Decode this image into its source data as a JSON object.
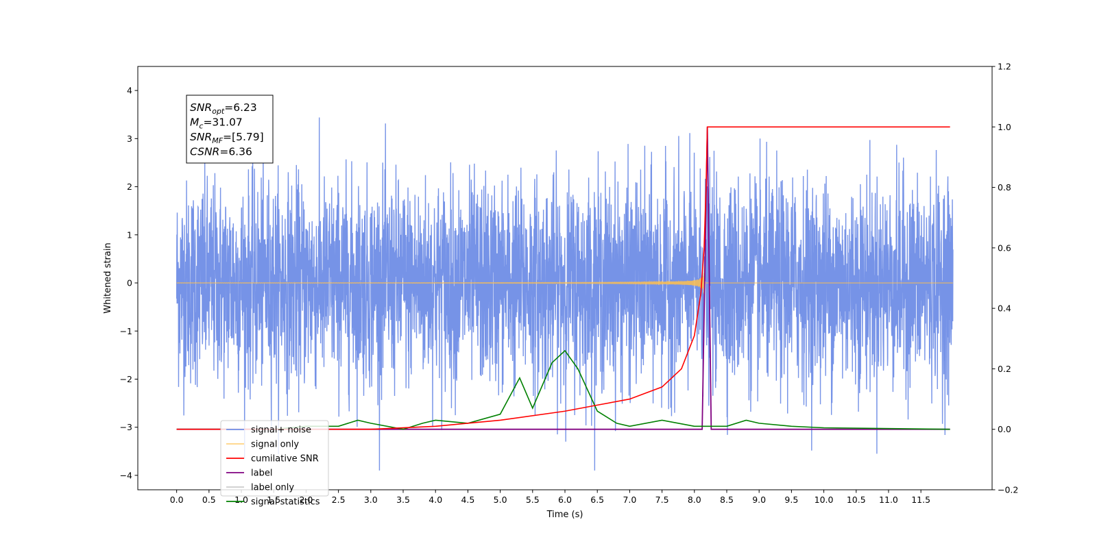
{
  "chart_data": {
    "type": "line",
    "xlabel": "Time (s)",
    "ylabel": "Whitened strain",
    "xlim": [
      -0.6,
      12.6
    ],
    "ylim": [
      -4.3,
      4.5
    ],
    "ylim_right": [
      -0.2,
      1.2
    ],
    "x_ticks": [
      "0.0",
      "0.5",
      "1.0",
      "1.5",
      "2.0",
      "2.5",
      "3.0",
      "3.5",
      "4.0",
      "4.5",
      "5.0",
      "5.5",
      "6.0",
      "6.5",
      "7.0",
      "7.5",
      "8.0",
      "8.5",
      "9.0",
      "9.5",
      "10.0",
      "10.5",
      "11.0",
      "11.5"
    ],
    "y_ticks_left": [
      "4",
      "3",
      "2",
      "1",
      "0",
      "−1",
      "−2",
      "−3",
      "−4"
    ],
    "y_ticks_right": [
      "1.2",
      "1.0",
      "0.8",
      "0.6",
      "0.4",
      "0.2",
      "0.0",
      "−0.2"
    ],
    "grid": false,
    "legend_position": "lower-left",
    "annotation": [
      {
        "main": "SNR",
        "sub": "opt",
        "value": "=6.23"
      },
      {
        "main": "M",
        "sub": "c",
        "value": "=31.07"
      },
      {
        "main": "SNR",
        "sub": "MF",
        "value": "=[5.79]"
      },
      {
        "main": "CSNR",
        "sub": "",
        "value": "=6.36"
      }
    ],
    "series": [
      {
        "name": "signal+ noise",
        "color": "#6f8de6",
        "axis": "left",
        "description": "white noise, amplitude about ±3, 0 to 12 s"
      },
      {
        "name": "signal only",
        "color": "#ffc04d",
        "axis": "left",
        "description": "chirp waveform, merger near 8.15 s"
      },
      {
        "name": "cumilative SNR",
        "color": "#ff0000",
        "axis": "right",
        "x": [
          0.0,
          3.0,
          4.0,
          5.0,
          6.0,
          6.5,
          7.0,
          7.5,
          7.8,
          8.0,
          8.1,
          8.15,
          8.18,
          8.2,
          11.95
        ],
        "y": [
          0.0,
          0.0,
          0.01,
          0.03,
          0.06,
          0.08,
          0.1,
          0.14,
          0.2,
          0.31,
          0.45,
          0.6,
          0.8,
          1.0,
          1.0
        ]
      },
      {
        "name": "label",
        "color": "#800080",
        "axis": "right",
        "x": [
          0.0,
          8.12,
          8.2,
          8.26,
          11.95
        ],
        "y": [
          0.0,
          0.0,
          1.0,
          0.0,
          0.0
        ]
      },
      {
        "name": "label only",
        "color": "#cccccc",
        "axis": "right",
        "description": "legend entry only"
      },
      {
        "name": "signal statistics",
        "color": "#008000",
        "axis": "right",
        "x": [
          0.0,
          1.5,
          2.0,
          2.5,
          2.8,
          3.0,
          3.5,
          3.8,
          4.0,
          4.5,
          5.0,
          5.3,
          5.5,
          5.8,
          6.0,
          6.2,
          6.5,
          6.8,
          7.0,
          7.5,
          8.0,
          8.5,
          8.8,
          9.0,
          9.5,
          10.0,
          11.95
        ],
        "y": [
          0.0,
          0.0,
          0.01,
          0.01,
          0.03,
          0.02,
          0.0,
          0.02,
          0.03,
          0.02,
          0.05,
          0.17,
          0.07,
          0.22,
          0.26,
          0.2,
          0.06,
          0.02,
          0.01,
          0.03,
          0.01,
          0.01,
          0.03,
          0.02,
          0.01,
          0.005,
          0.0
        ]
      }
    ]
  }
}
